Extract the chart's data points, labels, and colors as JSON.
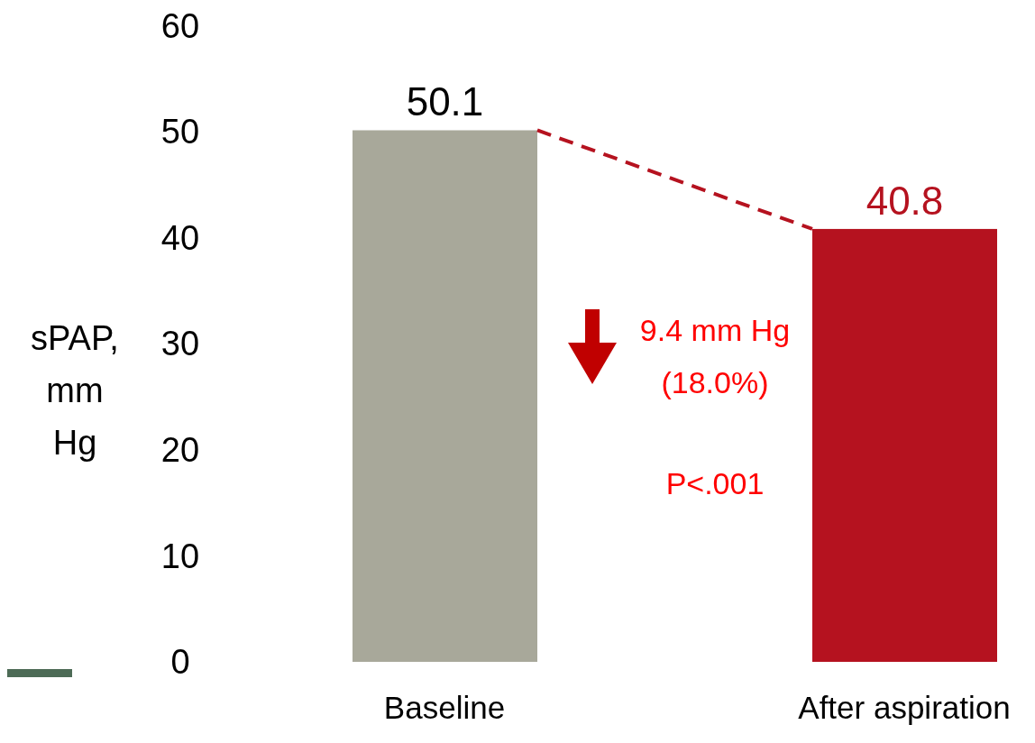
{
  "chart_data": {
    "type": "bar",
    "ylabel": "sPAP, mm Hg",
    "categories": [
      "Baseline",
      "After aspiration"
    ],
    "values": [
      50.1,
      40.8
    ],
    "colors": [
      "#a8a89a",
      "#b5121f"
    ],
    "data_labels": true,
    "ylim": [
      0,
      60
    ],
    "yticks": [
      0,
      10,
      20,
      30,
      40,
      50,
      60
    ],
    "grid": false,
    "annotations": [
      "9.4 mm Hg",
      "(18.0%)",
      "P<.001"
    ]
  }
}
